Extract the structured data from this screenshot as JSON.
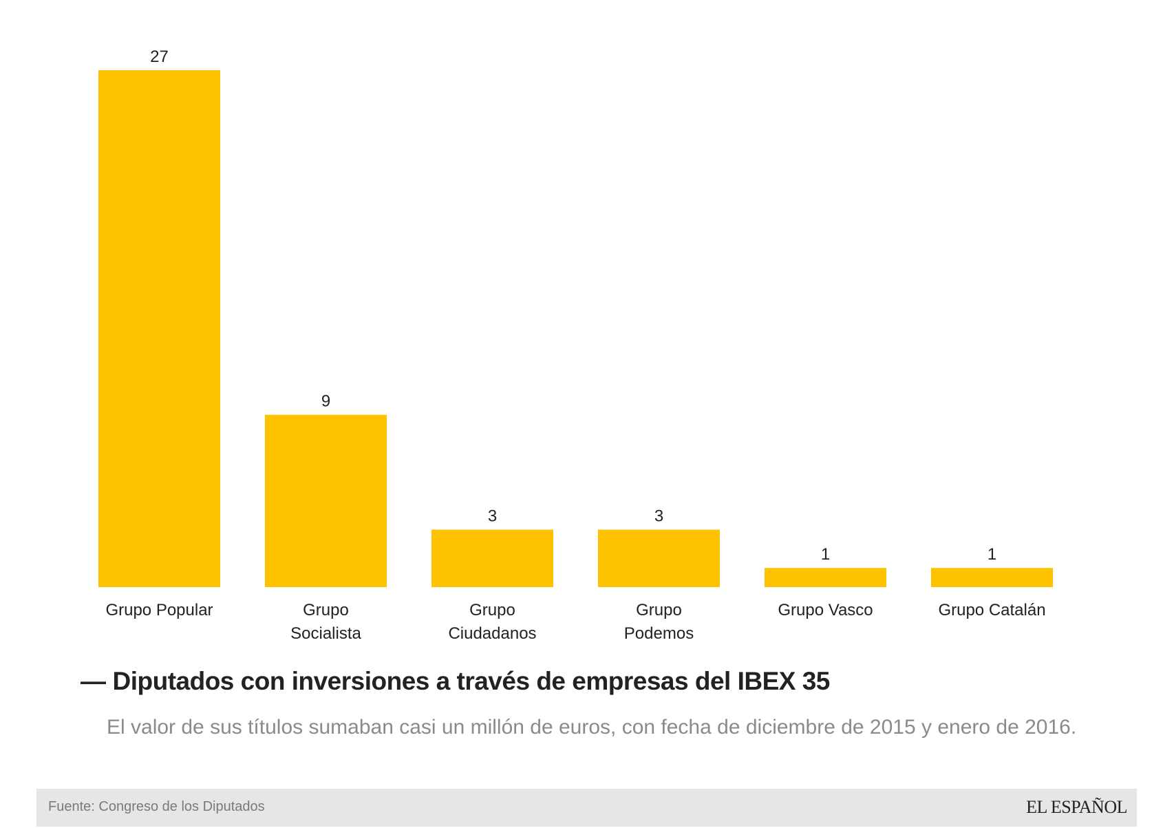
{
  "chart_data": {
    "type": "bar",
    "categories": [
      [
        "Grupo Popular"
      ],
      [
        "Grupo",
        "Socialista"
      ],
      [
        "Grupo",
        "Ciudadanos"
      ],
      [
        "Grupo",
        "Podemos"
      ],
      [
        "Grupo Vasco"
      ],
      [
        "Grupo Catalán"
      ]
    ],
    "values": [
      27,
      9,
      3,
      3,
      1,
      1
    ],
    "data_labels": [
      "27",
      "9",
      "3",
      "3",
      "1",
      "1"
    ],
    "title": "Diputados con inversiones a través de empresas del IBEX 35",
    "subtitle": "El valor de sus títulos sumaban casi un millón de euros, con fecha de diciembre de 2015 y enero de 2016.",
    "ylim": [
      0,
      27
    ],
    "grid": false,
    "bar_color": "#FFC200"
  },
  "title": {
    "dash": "—",
    "text": "Diputados con inversiones a través de empresas del IBEX 35"
  },
  "subtitle": "El valor de sus títulos sumaban casi un millón de euros, con fecha de diciembre de 2015 y enero de 2016.",
  "footer": {
    "source": "Fuente: Congreso de los Diputados",
    "logo": "EL ESPAÑOL"
  }
}
